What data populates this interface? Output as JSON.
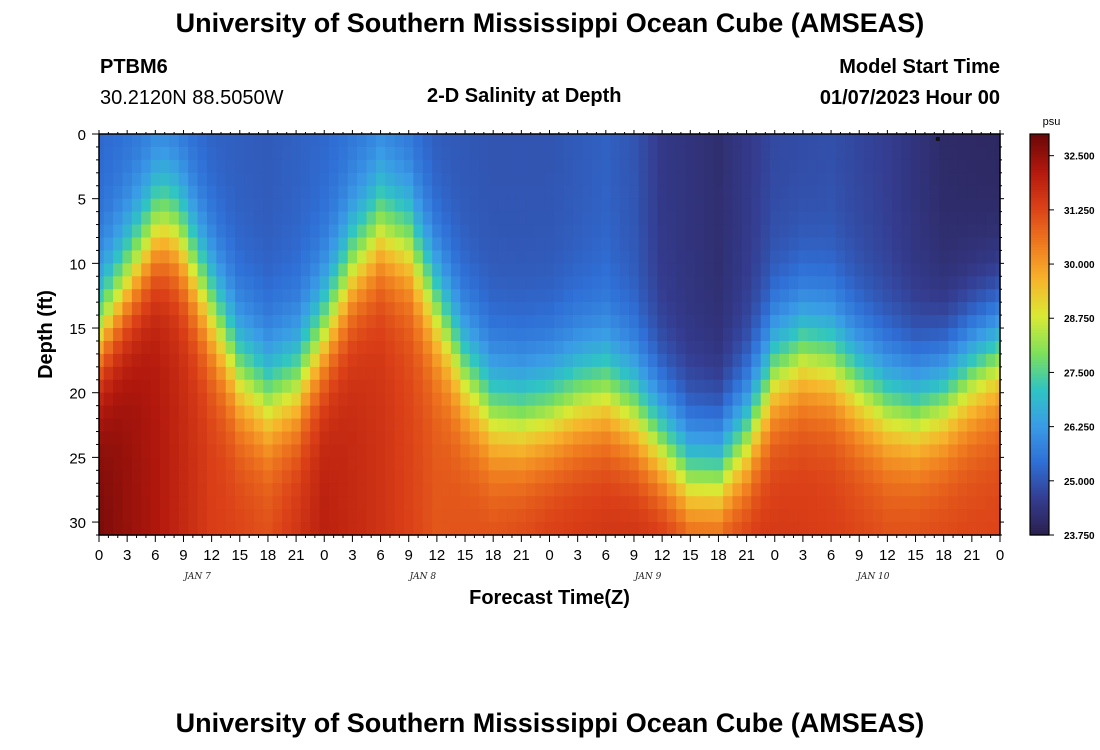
{
  "header": {
    "title": "University of Southern Mississippi Ocean Cube (AMSEAS)",
    "station_id": "PTBM6",
    "station_coords": "30.2120N  88.5050W",
    "product": "2-D Salinity at Depth",
    "model_label": "Model Start Time",
    "model_start": "01/07/2023 Hour 00"
  },
  "footer": {
    "title": "University of Southern Mississippi Ocean Cube (AMSEAS)"
  },
  "chart_data": {
    "type": "heatmap",
    "title": "2-D Salinity at Depth",
    "xlabel": "Forecast Time(Z)",
    "ylabel": "Depth (ft)",
    "x_unit": "hours since 01/07/2023 00Z",
    "x_range": [
      0,
      96
    ],
    "x_tick_hours": [
      0,
      3,
      6,
      9,
      12,
      15,
      18,
      21,
      24,
      27,
      30,
      33,
      36,
      39,
      42,
      45,
      48,
      51,
      54,
      57,
      60,
      63,
      66,
      69,
      72,
      75,
      78,
      81,
      84,
      87,
      90,
      93,
      96
    ],
    "x_tick_labels": [
      "0",
      "3",
      "6",
      "9",
      "12",
      "15",
      "18",
      "21",
      "0",
      "3",
      "6",
      "9",
      "12",
      "15",
      "18",
      "21",
      "0",
      "3",
      "6",
      "9",
      "12",
      "15",
      "18",
      "21",
      "0",
      "3",
      "6",
      "9",
      "12",
      "15",
      "18",
      "21",
      "0"
    ],
    "day_labels": [
      {
        "hour": 12,
        "label": "JAN 7"
      },
      {
        "hour": 36,
        "label": "JAN 8"
      },
      {
        "hour": 60,
        "label": "JAN 9"
      },
      {
        "hour": 84,
        "label": "JAN 10"
      }
    ],
    "y_range": [
      0,
      31
    ],
    "y_inverted": true,
    "y_ticks": [
      0,
      5,
      10,
      15,
      20,
      25,
      30
    ],
    "colorbar": {
      "unit": "psu",
      "min": 23.75,
      "max": 33.0,
      "tick_values": [
        32.5,
        31.25,
        30.0,
        28.75,
        27.5,
        26.25,
        25.0,
        23.75
      ],
      "tick_labels": [
        "32.500",
        "31.250",
        "30.000",
        "28.750",
        "27.500",
        "26.250",
        "25.000",
        "23.750"
      ],
      "colors": [
        "#2a1f4d",
        "#343c8f",
        "#2f6fd6",
        "#3a9be6",
        "#2fc4c4",
        "#7ee05a",
        "#d8ea35",
        "#f7b52c",
        "#ef7a1f",
        "#db4018",
        "#b2180d",
        "#6a0808"
      ]
    },
    "halocline_hours": [
      0,
      3,
      6,
      7.5,
      9,
      12,
      15,
      18,
      21,
      24,
      27,
      30,
      33,
      36,
      39,
      42,
      45,
      48,
      51,
      54,
      57,
      60,
      63,
      66,
      69,
      72,
      75,
      78,
      81,
      84,
      87,
      90,
      93,
      96
    ],
    "halocline_depth_ft": [
      15,
      11,
      7,
      6.5,
      8,
      13,
      18,
      20,
      19,
      15,
      10,
      7,
      8,
      13,
      18,
      21,
      21.5,
      21,
      20,
      19.5,
      21,
      23.5,
      26,
      26,
      23,
      18,
      16.5,
      17,
      19,
      20.5,
      21,
      20,
      18,
      16.5
    ],
    "surface_psu_hours": [
      0,
      6,
      12,
      18,
      24,
      30,
      36,
      42,
      48,
      54,
      57,
      60,
      66,
      72,
      78,
      84,
      90,
      96
    ],
    "surface_psu": [
      25.3,
      25.5,
      25.2,
      25.1,
      25.3,
      25.6,
      25.1,
      25.0,
      25.0,
      25.2,
      25.0,
      24.5,
      24.2,
      24.8,
      24.9,
      24.6,
      24.1,
      24.0
    ],
    "bottom_psu_hours": [
      0,
      6,
      12,
      18,
      24,
      30,
      36,
      42,
      48,
      54,
      60,
      66,
      72,
      78,
      84,
      90,
      96
    ],
    "bottom_psu": [
      32.8,
      32.2,
      31.4,
      31.2,
      32.0,
      31.6,
      31.0,
      31.2,
      31.5,
      31.6,
      31.8,
      31.7,
      31.5,
      31.4,
      31.2,
      31.3,
      31.3
    ],
    "grid_cells": {
      "time_columns": 97,
      "depth_rows": 31
    }
  }
}
